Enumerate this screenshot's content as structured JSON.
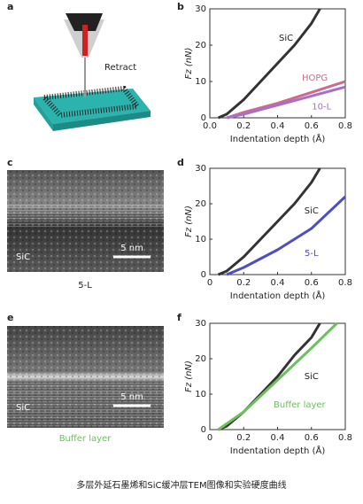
{
  "figure": {
    "panel_labels": [
      "a",
      "b",
      "c",
      "d",
      "e",
      "f"
    ],
    "retract_label": "Retract",
    "c_image": {
      "material": "SiC",
      "scale": "5 nm",
      "caption": "5-L"
    },
    "e_image": {
      "material": "SiC",
      "scale": "5 nm",
      "caption": "Buffer layer"
    },
    "caption": "多层外延石墨烯和SiC缓冲层TEM图像和实验硬度曲线"
  },
  "chart_data": [
    {
      "type": "line",
      "x_label": "Indentation depth (Å)",
      "y_label": "Fz (nN)",
      "xlim": [
        0,
        0.8
      ],
      "ylim": [
        0,
        30
      ],
      "xticks": [
        {
          "value": 0,
          "label": "0.0"
        },
        0.2,
        0.4,
        0.6,
        0.8
      ],
      "yticks": [
        0,
        10,
        20,
        30
      ],
      "series": [
        {
          "name": "SiC",
          "color": "#333333",
          "x": [
            0.05,
            0.1,
            0.2,
            0.3,
            0.4,
            0.5,
            0.6,
            0.65
          ],
          "values": [
            0,
            1,
            5,
            10,
            15,
            20,
            26,
            30
          ]
        },
        {
          "name": "HOPG",
          "color": "#d0688c",
          "x": [
            0.1,
            0.2,
            0.4,
            0.6,
            0.8
          ],
          "values": [
            0,
            1.5,
            4,
            7,
            10
          ]
        },
        {
          "name": "10-L",
          "color": "#a46fce",
          "x": [
            0.1,
            0.2,
            0.4,
            0.6,
            0.8
          ],
          "values": [
            0,
            1,
            3.5,
            6,
            8.5
          ]
        }
      ]
    },
    {
      "type": "line",
      "x_label": "Indentation depth (Å)",
      "y_label": "Fz (nN)",
      "xlim": [
        0,
        0.8
      ],
      "ylim": [
        0,
        30
      ],
      "xticks": [
        0,
        0.2,
        0.4,
        0.6,
        0.8
      ],
      "yticks": [
        0,
        10,
        20,
        30
      ],
      "series": [
        {
          "name": "SiC",
          "color": "#333333",
          "x": [
            0.05,
            0.1,
            0.2,
            0.3,
            0.4,
            0.5,
            0.6,
            0.65
          ],
          "values": [
            0,
            1,
            5,
            10,
            15,
            20,
            26,
            30
          ]
        },
        {
          "name": "5-L",
          "color": "#4e4ec4",
          "x": [
            0.1,
            0.2,
            0.4,
            0.6,
            0.8
          ],
          "values": [
            0,
            2,
            7,
            13,
            22
          ]
        }
      ]
    },
    {
      "type": "line",
      "x_label": "Indentation depth (Å)",
      "y_label": "Fz (nN)",
      "xlim": [
        0,
        0.8
      ],
      "ylim": [
        0,
        30
      ],
      "xticks": [
        0,
        0.2,
        0.4,
        0.6,
        0.8
      ],
      "yticks": [
        0,
        10,
        20,
        30
      ],
      "series": [
        {
          "name": "SiC",
          "color": "#333333",
          "x": [
            0.05,
            0.1,
            0.2,
            0.3,
            0.4,
            0.5,
            0.6,
            0.65
          ],
          "values": [
            0,
            1,
            5,
            10,
            15,
            21,
            26,
            30
          ]
        },
        {
          "name": "Buffer layer",
          "color": "#6cc05c",
          "x": [
            0.05,
            0.2,
            0.4,
            0.6,
            0.75
          ],
          "values": [
            0,
            5,
            14,
            23,
            30
          ]
        }
      ]
    }
  ]
}
